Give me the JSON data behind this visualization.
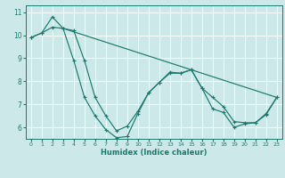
{
  "xlabel": "Humidex (Indice chaleur)",
  "bg_color": "#cce8e8",
  "grid_color": "#ffffff",
  "line_color": "#1a7a6e",
  "xlim": [
    -0.5,
    23.5
  ],
  "ylim": [
    5.5,
    11.3
  ],
  "x_ticks": [
    0,
    1,
    2,
    3,
    4,
    5,
    6,
    7,
    8,
    9,
    10,
    11,
    12,
    13,
    14,
    15,
    16,
    17,
    18,
    19,
    20,
    21,
    22,
    23
  ],
  "y_ticks": [
    6,
    7,
    8,
    9,
    10,
    11
  ],
  "series": [
    {
      "x": [
        0,
        1,
        2,
        3,
        4,
        5,
        6,
        7,
        8,
        9,
        10,
        11,
        12,
        13,
        14,
        15,
        16,
        17,
        18,
        19,
        20,
        21,
        22,
        23
      ],
      "y": [
        9.9,
        10.1,
        10.35,
        10.3,
        10.2,
        8.9,
        7.3,
        6.5,
        5.85,
        6.05,
        6.7,
        7.5,
        7.95,
        8.35,
        8.35,
        8.5,
        7.7,
        7.3,
        6.9,
        6.25,
        6.2,
        6.2,
        6.55,
        7.3
      ]
    },
    {
      "x": [
        0,
        1,
        2,
        3,
        4,
        5,
        6,
        7,
        8,
        9,
        10,
        11,
        12,
        13,
        14,
        15,
        16,
        17,
        18,
        19,
        20,
        21,
        22,
        23
      ],
      "y": [
        9.9,
        10.1,
        10.8,
        10.3,
        8.9,
        7.3,
        6.5,
        5.9,
        5.55,
        5.6,
        6.6,
        7.5,
        7.95,
        8.4,
        8.35,
        8.5,
        7.7,
        6.8,
        6.65,
        6.0,
        6.15,
        6.2,
        6.6,
        7.3
      ]
    },
    {
      "x": [
        3,
        23
      ],
      "y": [
        10.3,
        7.3
      ]
    }
  ]
}
